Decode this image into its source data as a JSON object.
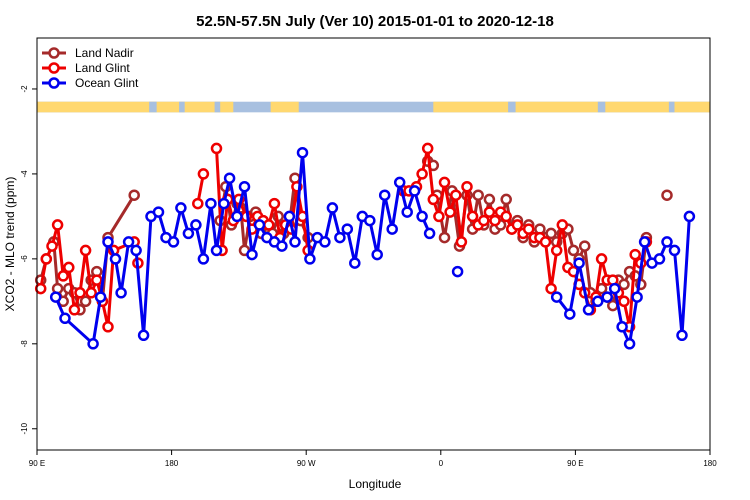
{
  "chart_data": {
    "type": "line",
    "title": "52.5N-57.5N July (Ver 10)   2015-01-01 to 2020-12-18",
    "xlabel": "Longitude",
    "ylabel": "XCO2 - MLO trend (ppm)",
    "xlim": [
      -90,
      270
    ],
    "ylim": [
      -10.5,
      -0.8
    ],
    "x_ticks": [
      {
        "value": -90,
        "label": "90 E"
      },
      {
        "value": -18,
        "label": "180"
      },
      {
        "value": 54,
        "label": "90 W"
      },
      {
        "value": 126,
        "label": "0"
      },
      {
        "value": 198,
        "label": "90 E"
      },
      {
        "value": 270,
        "label": "180"
      }
    ],
    "y_ticks": [
      {
        "value": -2,
        "label": "-2"
      },
      {
        "value": -4,
        "label": "-4"
      },
      {
        "value": -6,
        "label": "-6"
      },
      {
        "value": -8,
        "label": "-8"
      },
      {
        "value": -10,
        "label": "-10"
      }
    ],
    "legend": {
      "placement": "top-left"
    },
    "map_strip": {
      "y_range": [
        -2.3,
        -2.55
      ],
      "ocean_color": "#a8c0e0",
      "land_color": "#ffd870"
    },
    "series": [
      {
        "name": "Land Nadir",
        "color": "#a52a2a",
        "points": [
          [
            -88,
            -6.5
          ],
          [
            -85,
            -6.0
          ],
          [
            -81,
            -5.6
          ],
          [
            -79,
            -6.7
          ],
          [
            -76,
            -7.0
          ],
          [
            -73,
            -6.7
          ],
          [
            -70,
            -6.8
          ],
          [
            -67,
            -7.2
          ],
          [
            -64,
            -7.0
          ],
          [
            -61,
            -6.5
          ],
          [
            -58,
            -6.3
          ],
          [
            -55,
            -7.0
          ],
          [
            -52,
            -5.5
          ],
          [
            -38,
            -4.5
          ],
          null,
          [
            8,
            -5.1
          ],
          [
            11,
            -4.3
          ],
          [
            14,
            -5.2
          ],
          [
            17,
            -4.7
          ],
          [
            19,
            -4.8
          ],
          [
            21,
            -5.8
          ],
          [
            24,
            -5.0
          ],
          [
            27,
            -4.9
          ],
          [
            30,
            -5.4
          ],
          [
            33,
            -5.2
          ],
          [
            36,
            -5.4
          ],
          [
            39,
            -5.0
          ],
          [
            42,
            -5.4
          ],
          [
            45,
            -5.2
          ],
          [
            48,
            -4.1
          ],
          [
            51,
            -5.1
          ],
          [
            55,
            -5.5
          ],
          null,
          [
            119,
            -3.7
          ],
          [
            122,
            -3.8
          ],
          null,
          [
            124,
            -4.5
          ],
          [
            128,
            -5.5
          ],
          [
            132,
            -4.4
          ],
          [
            136,
            -5.7
          ],
          [
            140,
            -4.5
          ],
          [
            143,
            -5.3
          ],
          [
            146,
            -4.5
          ],
          [
            149,
            -5.2
          ],
          [
            152,
            -4.6
          ],
          [
            155,
            -5.3
          ],
          [
            158,
            -5.2
          ],
          [
            161,
            -4.6
          ],
          [
            164,
            -5.3
          ],
          [
            167,
            -5.1
          ],
          [
            170,
            -5.5
          ],
          [
            173,
            -5.2
          ],
          [
            176,
            -5.6
          ],
          [
            179,
            -5.3
          ],
          [
            182,
            -5.5
          ],
          [
            185,
            -5.4
          ],
          [
            188,
            -5.6
          ],
          [
            191,
            -5.4
          ],
          [
            194,
            -5.3
          ],
          [
            197,
            -5.8
          ],
          [
            200,
            -6.0
          ],
          [
            203,
            -5.7
          ],
          [
            206,
            -6.8
          ],
          [
            209,
            -7.0
          ],
          [
            212,
            -6.7
          ],
          [
            215,
            -6.9
          ],
          [
            218,
            -7.1
          ],
          [
            221,
            -6.5
          ],
          [
            224,
            -6.6
          ],
          [
            227,
            -6.3
          ],
          [
            230,
            -6.4
          ],
          [
            233,
            -6.6
          ],
          [
            236,
            -5.5
          ],
          null,
          [
            247,
            -4.5
          ]
        ]
      },
      {
        "name": "Land Glint",
        "color": "#ee0000",
        "points": [
          [
            -88,
            -6.7
          ],
          [
            -85,
            -6.0
          ],
          [
            -82,
            -5.7
          ],
          [
            -79,
            -5.2
          ],
          [
            -76,
            -6.4
          ],
          [
            -73,
            -6.2
          ],
          [
            -70,
            -7.2
          ],
          [
            -67,
            -6.8
          ],
          [
            -64,
            -5.8
          ],
          [
            -61,
            -6.8
          ],
          [
            -58,
            -6.5
          ],
          [
            -55,
            -7.0
          ],
          [
            -52,
            -7.6
          ],
          [
            -49,
            -5.8
          ],
          [
            -38,
            -5.6
          ],
          null,
          [
            -36,
            -6.1
          ],
          null,
          [
            -4,
            -4.7
          ],
          [
            -1,
            -4.0
          ],
          null,
          [
            6,
            -3.4
          ],
          [
            9,
            -5.8
          ],
          [
            12,
            -4.6
          ],
          [
            15,
            -5.1
          ],
          [
            18,
            -4.6
          ],
          [
            22,
            -5.0
          ],
          [
            25,
            -5.3
          ],
          [
            28,
            -5.0
          ],
          [
            31,
            -5.1
          ],
          [
            34,
            -5.2
          ],
          [
            37,
            -4.7
          ],
          [
            40,
            -5.5
          ],
          [
            43,
            -5.2
          ],
          [
            46,
            -5.3
          ],
          [
            49,
            -4.3
          ],
          [
            52,
            -5.0
          ],
          [
            55,
            -5.8
          ],
          null,
          [
            106,
            -4.4
          ],
          [
            109,
            -4.4
          ],
          [
            113,
            -4.3
          ],
          [
            116,
            -4.0
          ],
          [
            119,
            -3.4
          ],
          [
            122,
            -4.6
          ],
          [
            125,
            -5.0
          ],
          [
            128,
            -4.2
          ],
          [
            131,
            -4.9
          ],
          [
            134,
            -4.5
          ],
          [
            137,
            -5.6
          ],
          [
            140,
            -4.3
          ],
          [
            143,
            -5.0
          ],
          [
            146,
            -5.2
          ],
          [
            149,
            -5.1
          ],
          [
            152,
            -4.9
          ],
          [
            155,
            -5.1
          ],
          [
            158,
            -4.9
          ],
          [
            161,
            -5.0
          ],
          [
            164,
            -5.3
          ],
          [
            167,
            -5.2
          ],
          [
            170,
            -5.4
          ],
          [
            173,
            -5.3
          ],
          [
            176,
            -5.5
          ],
          [
            179,
            -5.5
          ],
          [
            182,
            -5.6
          ],
          [
            185,
            -6.7
          ],
          [
            188,
            -5.8
          ],
          [
            191,
            -5.2
          ],
          [
            194,
            -6.2
          ],
          [
            197,
            -6.3
          ],
          [
            200,
            -6.6
          ],
          [
            203,
            -6.8
          ],
          [
            206,
            -7.2
          ],
          [
            209,
            -6.9
          ],
          [
            212,
            -6.0
          ],
          [
            215,
            -6.5
          ],
          [
            218,
            -6.5
          ],
          [
            221,
            -6.8
          ],
          [
            224,
            -7.0
          ],
          [
            227,
            -7.6
          ],
          [
            230,
            -5.9
          ],
          [
            233,
            -6.1
          ],
          [
            236,
            -5.6
          ]
        ]
      },
      {
        "name": "Ocean Glint",
        "color": "#0000ee",
        "points": [
          [
            -80,
            -6.9
          ],
          [
            -75,
            -7.4
          ],
          [
            -60,
            -8.0
          ],
          [
            -56,
            -6.9
          ],
          [
            -52,
            -5.6
          ],
          [
            -48,
            -6.0
          ],
          [
            -45,
            -6.8
          ],
          [
            -41,
            -5.6
          ],
          [
            -37,
            -5.8
          ],
          [
            -33,
            -7.8
          ],
          [
            -29,
            -5.0
          ],
          [
            -25,
            -4.9
          ],
          [
            -21,
            -5.5
          ],
          [
            -17,
            -5.6
          ],
          [
            -13,
            -4.8
          ],
          [
            -9,
            -5.4
          ],
          [
            -5,
            -5.2
          ],
          [
            -1,
            -6.0
          ],
          [
            3,
            -4.7
          ],
          [
            6,
            -5.8
          ],
          [
            10,
            -4.7
          ],
          [
            13,
            -4.1
          ],
          [
            17,
            -5.0
          ],
          [
            21,
            -4.3
          ],
          [
            25,
            -5.9
          ],
          [
            29,
            -5.2
          ],
          [
            33,
            -5.5
          ],
          [
            37,
            -5.6
          ],
          [
            41,
            -5.7
          ],
          [
            45,
            -5.0
          ],
          [
            48,
            -5.6
          ],
          [
            52,
            -3.5
          ],
          [
            56,
            -6.0
          ],
          [
            60,
            -5.5
          ],
          [
            64,
            -5.6
          ],
          [
            68,
            -4.8
          ],
          [
            72,
            -5.5
          ],
          [
            76,
            -5.3
          ],
          [
            80,
            -6.1
          ],
          [
            84,
            -5.0
          ],
          [
            88,
            -5.1
          ],
          [
            92,
            -5.9
          ],
          [
            96,
            -4.5
          ],
          [
            100,
            -5.3
          ],
          [
            104,
            -4.2
          ],
          [
            108,
            -4.9
          ],
          [
            112,
            -4.4
          ],
          [
            116,
            -5.0
          ],
          [
            120,
            -5.4
          ]
        ]
      },
      {
        "name": "Ocean Glint",
        "color": "#0000ee",
        "points": [
          [
            135,
            -6.3
          ],
          null,
          [
            188,
            -6.9
          ],
          [
            195,
            -7.3
          ],
          [
            200,
            -6.1
          ],
          [
            205,
            -7.2
          ],
          [
            210,
            -7.0
          ],
          [
            215,
            -6.9
          ],
          [
            219,
            -6.7
          ],
          [
            223,
            -7.6
          ],
          [
            227,
            -8.0
          ],
          [
            231,
            -6.9
          ],
          [
            235,
            -5.6
          ],
          [
            239,
            -6.1
          ],
          [
            243,
            -6.0
          ],
          [
            247,
            -5.6
          ],
          [
            251,
            -5.8
          ],
          [
            255,
            -7.8
          ],
          [
            259,
            -5.0
          ]
        ]
      }
    ]
  }
}
